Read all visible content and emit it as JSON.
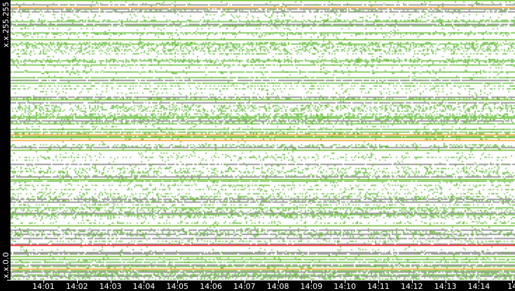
{
  "y_axis": {
    "top_label": "x.x.255.255",
    "bottom_label": "x.x.0.0"
  },
  "x_axis": {
    "ticks": [
      "14:01",
      "14:02",
      "14:03",
      "14:04",
      "14:05",
      "14:06",
      "14:07",
      "14:08",
      "14:09",
      "14:10",
      "14:11",
      "14:12",
      "14:13",
      "14:14",
      "14"
    ]
  },
  "colors": {
    "background": "#ffffff",
    "low": "#8ccf6e",
    "medium": "#66bb22",
    "high": "#f0a020",
    "peak": "#ff0000",
    "frame": "#000000"
  }
}
